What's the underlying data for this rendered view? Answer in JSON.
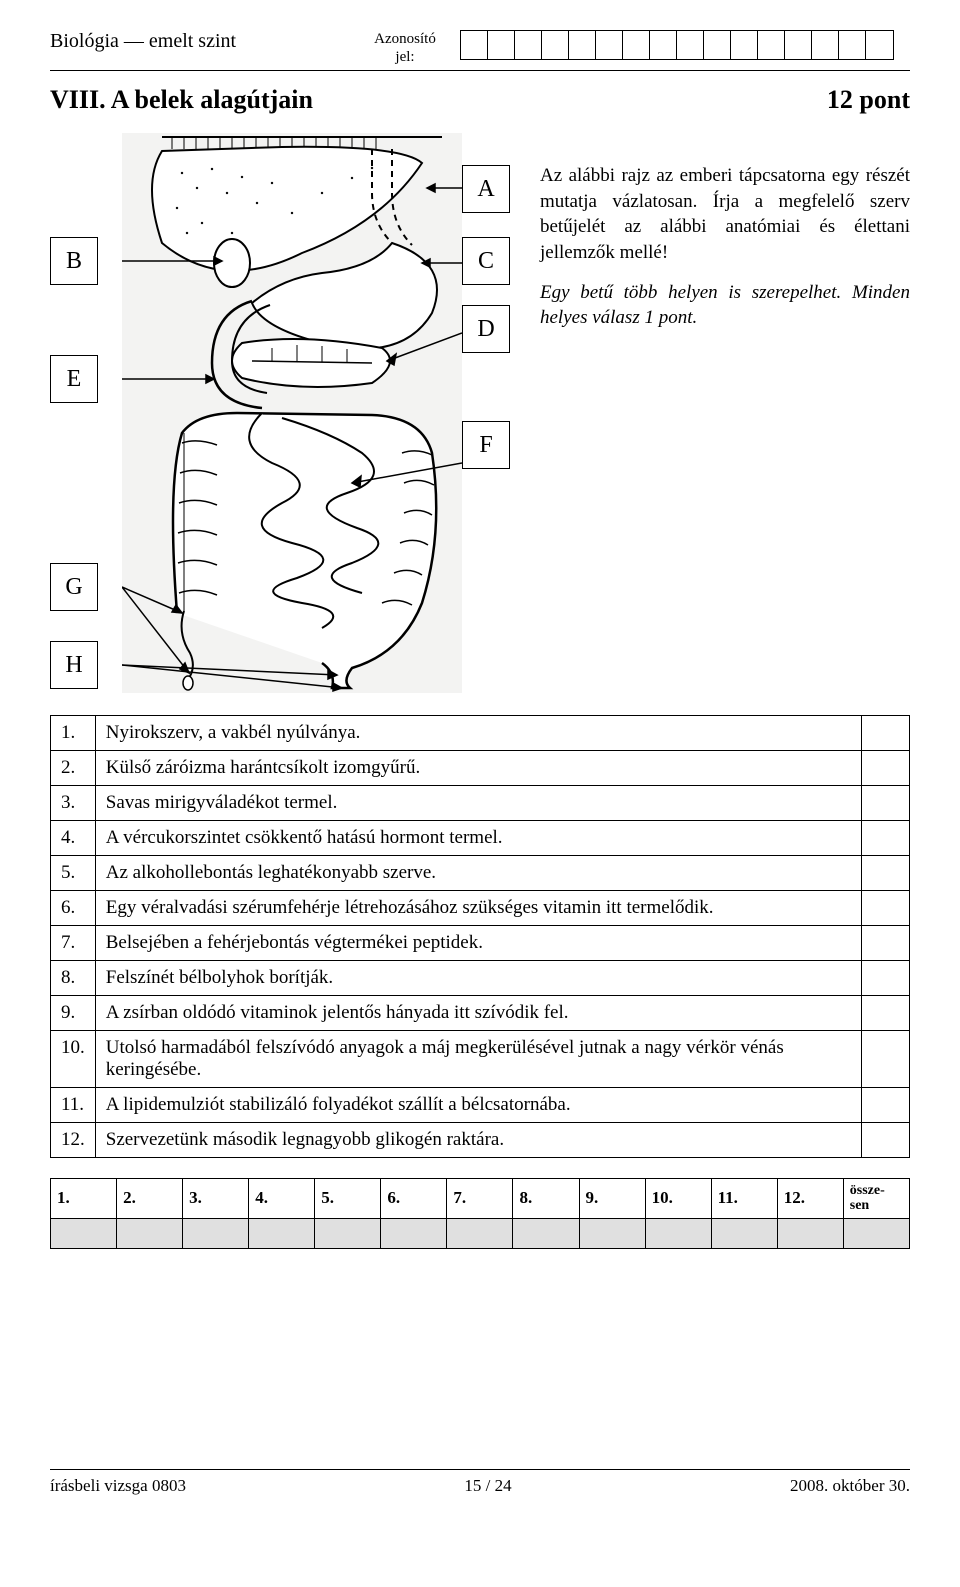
{
  "header": {
    "subject": "Biológia — emelt szint",
    "id_label1": "Azonosító",
    "id_label2": "jel:",
    "id_cell_count": 16
  },
  "title": {
    "left": "VIII. A belek alagútjain",
    "right": "12 pont"
  },
  "diagram": {
    "labels": [
      "A",
      "B",
      "C",
      "D",
      "E",
      "F",
      "G",
      "H"
    ],
    "box_stroke": "#000000",
    "box_fill": "#ffffff",
    "diagram_stroke": "#000000",
    "diagram_fill": "#ffffff",
    "diagram_bg": "#f3f3f2"
  },
  "intro": {
    "p1": "Az alábbi rajz az emberi tápcsatorna egy részét mutatja vázlatosan. Írja a megfelelő szerv betűjelét az alábbi anatómiai és élettani jellemzők mellé!",
    "p2": "Egy betű több helyen is szerepelhet. Minden helyes válasz 1 pont."
  },
  "questions": [
    {
      "n": "1.",
      "t": "Nyirokszerv, a vakbél nyúlványa."
    },
    {
      "n": "2.",
      "t": "Külső záróizma harántcsíkolt izomgyűrű."
    },
    {
      "n": "3.",
      "t": "Savas mirigyváladékot termel."
    },
    {
      "n": "4.",
      "t": "A vércukorszintet csökkentő hatású hormont termel."
    },
    {
      "n": "5.",
      "t": "Az alkohollebontás leghatékonyabb szerve."
    },
    {
      "n": "6.",
      "t": "Egy véralvadási szérumfehérje létrehozásához szükséges vitamin itt termelődik."
    },
    {
      "n": "7.",
      "t": "Belsejében a fehérjebontás végtermékei peptidek."
    },
    {
      "n": "8.",
      "t": "Felszínét bélbolyhok borítják."
    },
    {
      "n": "9.",
      "t": "A zsírban oldódó vitaminok jelentős hányada itt szívódik fel."
    },
    {
      "n": "10.",
      "t": "Utolsó harmadából felszívódó anyagok a máj megkerülésével jutnak a nagy vérkör vénás keringésébe."
    },
    {
      "n": "11.",
      "t": "A lipidemulziót stabilizáló folyadékot szállít a bélcsatornába."
    },
    {
      "n": "12.",
      "t": "Szervezetünk második legnagyobb glikogén raktára."
    }
  ],
  "score": {
    "headers": [
      "1.",
      "2.",
      "3.",
      "4.",
      "5.",
      "6.",
      "7.",
      "8.",
      "9.",
      "10.",
      "11.",
      "12."
    ],
    "total_label": "össze-sen"
  },
  "footer": {
    "left": "írásbeli vizsga 0803",
    "center": "15 / 24",
    "right": "2008. október 30."
  }
}
